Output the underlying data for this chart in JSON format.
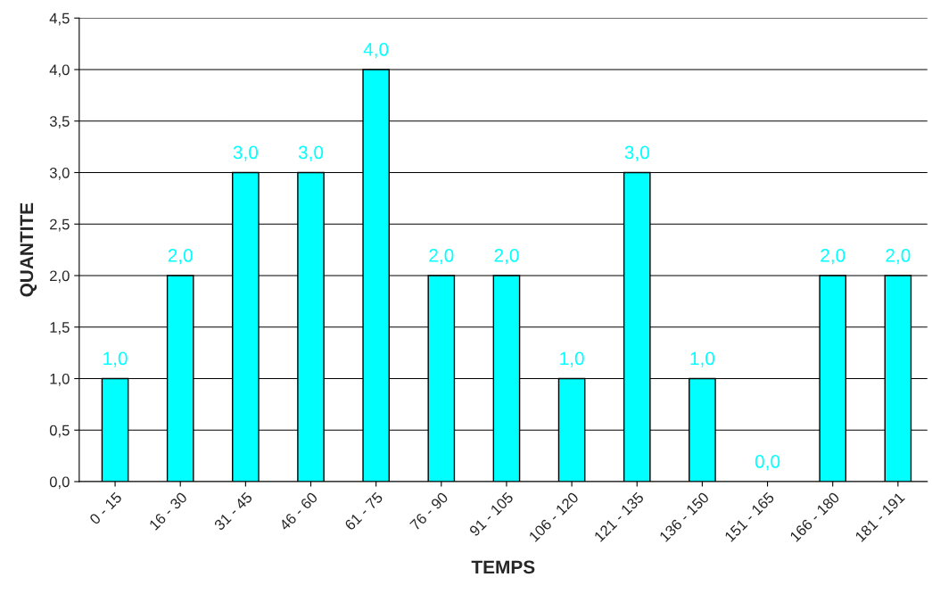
{
  "chart_data": {
    "type": "bar",
    "xlabel": "TEMPS",
    "ylabel": "QUANTITE",
    "categories": [
      "0 - 15",
      "16 - 30",
      "31 - 45",
      "46 - 60",
      "61 - 75",
      "76 - 90",
      "91 - 105",
      "106 - 120",
      "121 - 135",
      "136 - 150",
      "151 - 165",
      "166 - 180",
      "181 - 191"
    ],
    "series": [
      {
        "color": "#00ffff",
        "values": [
          1,
          2,
          3,
          3,
          4,
          2,
          2,
          1,
          3,
          1,
          0,
          2,
          2
        ]
      }
    ],
    "value_labels": [
      "1,0",
      "2,0",
      "3,0",
      "3,0",
      "4,0",
      "2,0",
      "2,0",
      "1,0",
      "3,0",
      "1,0",
      "0,0",
      "2,0",
      "2,0"
    ],
    "ylim": [
      0,
      4.5
    ],
    "yticks": [
      {
        "value": 0,
        "label": "0,0"
      },
      {
        "value": 0.5,
        "label": "0,5"
      },
      {
        "value": 1,
        "label": "1,0"
      },
      {
        "value": 1.5,
        "label": "1,5"
      },
      {
        "value": 2,
        "label": "2,0"
      },
      {
        "value": 2.5,
        "label": "2,5"
      },
      {
        "value": 3,
        "label": "3,0"
      },
      {
        "value": 3.5,
        "label": "3,5"
      },
      {
        "value": 4,
        "label": "4,0"
      },
      {
        "value": 4.5,
        "label": "4,5"
      }
    ],
    "grid": "y"
  }
}
